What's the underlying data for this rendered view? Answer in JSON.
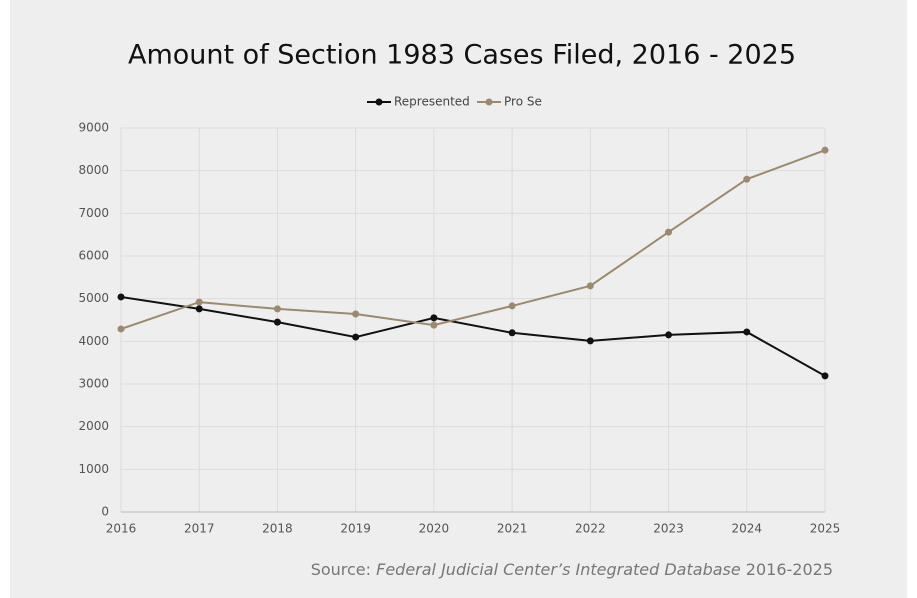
{
  "chart_data": {
    "type": "line",
    "title": "Amount of Section 1983 Cases Filed, 2016 - 2025",
    "categories": [
      "2016",
      "2017",
      "2018",
      "2019",
      "2020",
      "2021",
      "2022",
      "2023",
      "2024",
      "2025"
    ],
    "series": [
      {
        "name": "Represented",
        "color": "#111111",
        "values": [
          5040,
          4760,
          4450,
          4100,
          4550,
          4200,
          4010,
          4150,
          4220,
          3190
        ]
      },
      {
        "name": "Pro Se",
        "color": "#9c8a6e",
        "values": [
          4290,
          4920,
          4760,
          4640,
          4380,
          4830,
          5300,
          6560,
          7800,
          8480
        ]
      }
    ],
    "ylim": [
      0,
      9000
    ],
    "yticks": [
      0,
      1000,
      2000,
      3000,
      4000,
      5000,
      6000,
      7000,
      8000,
      9000
    ],
    "grid": true,
    "legend": "top",
    "source": [
      "Source: ",
      "Federal Judicial Center’s Integrated Database",
      " 2016-2025"
    ]
  }
}
